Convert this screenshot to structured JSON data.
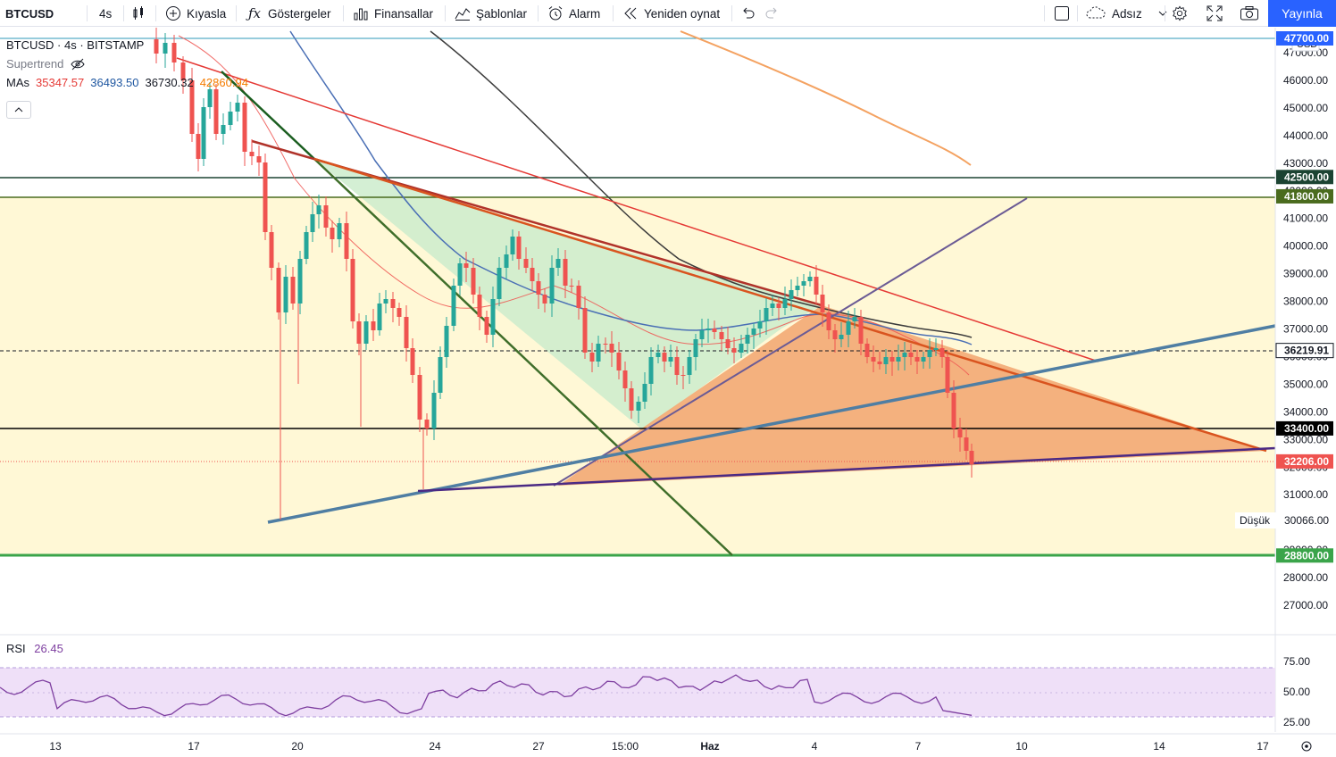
{
  "toolbar": {
    "symbol": "BTCUSD",
    "interval": "4s",
    "compare": "Kıyasla",
    "indicators": "Göstergeler",
    "financials": "Finansallar",
    "templates": "Şablonlar",
    "alert": "Alarm",
    "replay": "Yeniden oynat",
    "layout_name": "Adsız",
    "publish": "Yayınla"
  },
  "legend": {
    "title": "BTCUSD · 4s · BITSTAMP",
    "supertrend": "Supertrend",
    "mas_label": "MAs",
    "mas_values": [
      {
        "value": "35347.57",
        "color": "#e53935"
      },
      {
        "value": "36493.50",
        "color": "#1e56a0"
      },
      {
        "value": "36730.32",
        "color": "#131722"
      },
      {
        "value": "42860.94",
        "color": "#f57c00"
      }
    ]
  },
  "price_axis": {
    "currency": "USD",
    "ticks": [
      "47000.00",
      "46000.00",
      "45000.00",
      "44000.00",
      "43000.00",
      "42000.00",
      "41000.00",
      "40000.00",
      "39000.00",
      "38000.00",
      "37000.00",
      "36000.00",
      "35000.00",
      "34000.00",
      "33000.00",
      "32000.00",
      "31000.00",
      "30000.00",
      "29000.00",
      "28000.00",
      "27000.00"
    ],
    "labels": [
      {
        "value": "47700.00",
        "color": "#2962ff"
      },
      {
        "value": "42500.00",
        "color": "#1b4332"
      },
      {
        "value": "41800.00",
        "color": "#4a6b1e"
      },
      {
        "value": "36219.91",
        "color": "#131722",
        "outline": true
      },
      {
        "value": "33400.00",
        "color": "#000000"
      },
      {
        "value": "32206.00",
        "color": "#ef5350"
      },
      {
        "value": "28800.00",
        "color": "#3aa44a"
      }
    ],
    "low_label": "Düşük",
    "low_value": "30066.00"
  },
  "time_axis": {
    "ticks": [
      "13",
      "17",
      "20",
      "24",
      "27",
      "15:00",
      "Haz",
      "4",
      "7",
      "10",
      "14",
      "17"
    ]
  },
  "rsi": {
    "label": "RSI",
    "value": "26.45",
    "ticks": [
      "75.00",
      "50.00",
      "25.00"
    ]
  },
  "colors": {
    "up": "#26a69a",
    "down": "#ef5350",
    "zone_fill": "#fff8d6",
    "triangle_green": "#cdeccc",
    "triangle_orange": "#f3a974"
  },
  "chart_data": {
    "type": "candlestick",
    "symbol": "BTCUSD",
    "interval": "4h",
    "exchange": "BITSTAMP",
    "ylim": [
      26500,
      48000
    ],
    "horizontal_levels": [
      42500,
      41800,
      36219.91,
      33400,
      32206,
      28800
    ],
    "last_price": 32206,
    "period_low": 30066,
    "rsi_last": 26.45
  }
}
